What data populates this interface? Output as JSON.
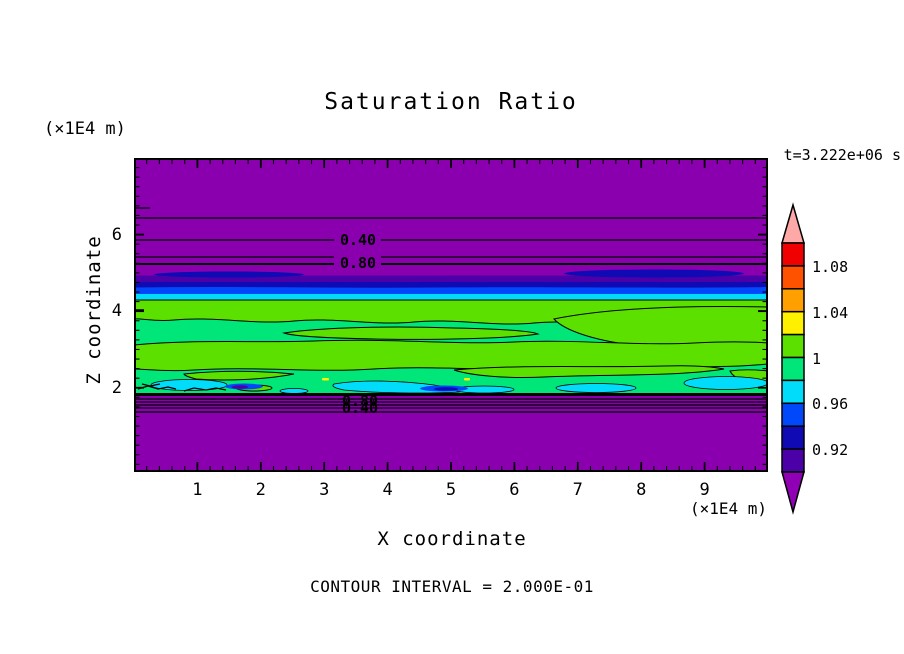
{
  "chart_data": {
    "type": "heatmap",
    "title": "Saturation Ratio",
    "xlabel": "X coordinate",
    "ylabel": "Z coordinate",
    "x_unit_label": "(×1E4 m)",
    "y_unit_label": "(×1E4 m)",
    "time_label": "t=3.222e+06 s",
    "contour_interval_label": "CONTOUR INTERVAL = 2.000E-01",
    "x_axis": {
      "range": [
        0,
        10
      ],
      "major_ticks": [
        1,
        2,
        3,
        4,
        5,
        6,
        7,
        8,
        9
      ],
      "minor_step": 0.2
    },
    "y_axis": {
      "range": [
        -0.2,
        8.0
      ],
      "major_ticks": [
        2,
        4,
        6
      ],
      "minor_step": 0.25
    },
    "contour_labels": {
      "upper": [
        "0.40",
        "0.80"
      ],
      "lower_overlapping": [
        "0.80",
        "0.40"
      ]
    },
    "colorbar": {
      "labels": [
        "1.08",
        "1.04",
        "1",
        "0.96",
        "0.92"
      ],
      "label_boundaries": [
        1,
        3,
        5,
        7,
        9
      ],
      "segments": [
        {
          "color": "#f00000",
          "range": [
            1.08,
            1.1
          ]
        },
        {
          "color": "#ff5200",
          "range": [
            1.06,
            1.08
          ]
        },
        {
          "color": "#ffa000",
          "range": [
            1.04,
            1.06
          ]
        },
        {
          "color": "#fff000",
          "range": [
            1.02,
            1.04
          ]
        },
        {
          "color": "#5be000",
          "range": [
            1.0,
            1.02
          ]
        },
        {
          "color": "#00e678",
          "range": [
            0.98,
            1.0
          ]
        },
        {
          "color": "#00dcfa",
          "range": [
            0.96,
            0.98
          ]
        },
        {
          "color": "#0048fa",
          "range": [
            0.94,
            0.96
          ]
        },
        {
          "color": "#0f0ab4",
          "range": [
            0.92,
            0.94
          ]
        },
        {
          "color": "#4b00a8",
          "range": [
            0.9,
            0.92
          ]
        }
      ],
      "over_arrow_color": "#ffa8a8",
      "under_arrow_color": "#9000b4"
    },
    "field_colors": {
      "background_unsaturated": "#8a00ae",
      "saturated_band": "#00e678",
      "supersaturated_patches": "#5be000"
    }
  }
}
